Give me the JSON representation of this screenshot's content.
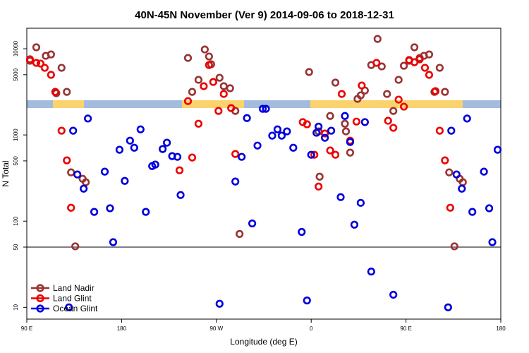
{
  "chart_data": {
    "type": "scatter",
    "title": "40N-45N November (Ver 9)   2014-09-06 to 2018-12-31",
    "x_label": "Longitude (deg E)",
    "y_label": "N Total",
    "xlim": [
      90,
      540
    ],
    "ylim": [
      7.3,
      17300
    ],
    "y_log": true,
    "xticks": [
      {
        "value": 90,
        "label": "90 E"
      },
      180,
      {
        "value": 270,
        "label": "90 W"
      },
      {
        "value": 360,
        "label": "0"
      },
      {
        "value": 450,
        "label": "90 E"
      },
      {
        "value": 540,
        "label": "180"
      }
    ],
    "yticks": [
      10,
      50,
      100,
      500,
      1000,
      5000,
      10000
    ],
    "reference_line": 50,
    "legend": "bottom-left",
    "series": [
      {
        "name": "Land Nadir",
        "color": "#993333",
        "x": [
          93,
          99,
          108,
          113,
          118,
          123,
          128,
          132,
          143,
          146,
          136,
          243,
          247,
          253,
          259,
          263,
          265,
          273,
          277,
          283,
          288,
          292,
          358,
          367,
          378,
          383,
          392,
          393,
          397,
          368,
          404,
          407,
          411,
          417,
          423,
          427,
          432,
          438,
          443,
          448,
          453,
          458,
          463,
          467,
          472,
          477,
          482,
          487,
          491,
          496,
          501,
          504
        ],
        "values": [
          7260,
          10400,
          8280,
          8590,
          3050,
          6010,
          3160,
          368,
          310,
          283,
          51,
          7820,
          3160,
          4360,
          9810,
          8130,
          6610,
          4610,
          3680,
          3480,
          1900,
          71,
          5370,
          1100,
          1660,
          4050,
          1350,
          1100,
          624,
          328,
          2620,
          2880,
          3280,
          6470,
          13000,
          6240,
          2990,
          1900,
          4360,
          6350,
          7260,
          10400,
          7820,
          8280,
          8590,
          3160,
          6010,
          3160,
          368,
          51,
          310,
          283
        ]
      },
      {
        "name": "Land Glint",
        "color": "#ee0000",
        "x": [
          93,
          99,
          103,
          107,
          113,
          117,
          123,
          128,
          132,
          235,
          243,
          247,
          253,
          258,
          263,
          267,
          272,
          277,
          284,
          288,
          352,
          356,
          363,
          367,
          373,
          378,
          383,
          389,
          397,
          403,
          408,
          422,
          433,
          438,
          443,
          448,
          453,
          458,
          463,
          468,
          472,
          478,
          482,
          487,
          492
        ],
        "values": [
          7540,
          6860,
          6730,
          6010,
          4980,
          3160,
          1120,
          507,
          143,
          389,
          2470,
          547,
          1350,
          3680,
          6470,
          4120,
          1900,
          2990,
          2050,
          601,
          1410,
          1330,
          589,
          252,
          1040,
          661,
          589,
          2990,
          859,
          1430,
          3750,
          6860,
          1460,
          1210,
          2570,
          2130,
          7400,
          6980,
          7540,
          6010,
          4980,
          3220,
          1120,
          507,
          143
        ]
      },
      {
        "name": "Ocean Glint",
        "color": "#0000dd",
        "x": [
          130,
          134,
          138,
          144,
          148,
          154,
          164,
          169,
          172,
          178,
          183,
          188,
          192,
          198,
          203,
          209,
          212,
          219,
          223,
          228,
          233,
          236,
          273,
          288,
          294,
          299,
          304,
          309,
          314,
          317,
          323,
          328,
          332,
          337,
          343,
          351,
          356,
          360,
          365,
          367,
          373,
          379,
          388,
          392,
          397,
          401,
          407,
          411,
          417,
          438,
          490,
          493,
          498,
          503,
          508,
          513,
          524,
          529,
          532,
          537
        ],
        "values": [
          10,
          1120,
          348,
          238,
          1550,
          128,
          375,
          141,
          57,
          673,
          293,
          859,
          711,
          1160,
          128,
          435,
          453,
          686,
          813,
          568,
          557,
          201,
          11,
          288,
          557,
          1570,
          94,
          753,
          2010,
          2010,
          982,
          1160,
          982,
          1100,
          711,
          75,
          12,
          589,
          1060,
          1250,
          927,
          1120,
          190,
          1660,
          828,
          91,
          163,
          1410,
          26,
          14,
          10,
          1120,
          348,
          238,
          1550,
          128,
          375,
          141,
          57,
          673
        ]
      }
    ]
  }
}
